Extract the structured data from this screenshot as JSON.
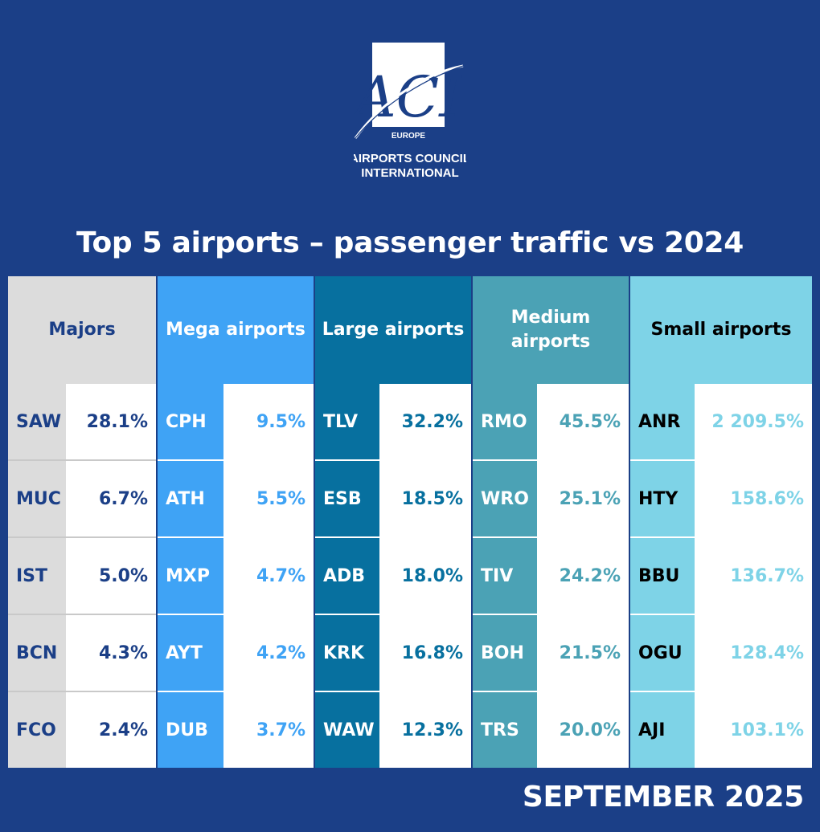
{
  "logo": {
    "mark": "ACI",
    "region": "EUROPE",
    "line1": "AIRPORTS COUNCIL",
    "line2": "INTERNATIONAL"
  },
  "title": "Top 5 airports – passenger traffic vs 2024",
  "footer": "SEPTEMBER 2025",
  "colors": {
    "background": "#1b3f87",
    "majors": "#dcdcdc",
    "mega": "#3fa3f5",
    "large": "#07709f",
    "medium": "#4ba2b5",
    "small": "#7ed3e7"
  },
  "chart_data": {
    "type": "table",
    "groups": [
      {
        "name": "Majors",
        "airports": [
          "SAW",
          "MUC",
          "IST",
          "BCN",
          "FCO"
        ],
        "values": [
          "28.1%",
          "6.7%",
          "5.0%",
          "4.3%",
          "2.4%"
        ]
      },
      {
        "name": "Mega airports",
        "airports": [
          "CPH",
          "ATH",
          "MXP",
          "AYT",
          "DUB"
        ],
        "values": [
          "9.5%",
          "5.5%",
          "4.7%",
          "4.2%",
          "3.7%"
        ]
      },
      {
        "name": "Large airports",
        "airports": [
          "TLV",
          "ESB",
          "ADB",
          "KRK",
          "WAW"
        ],
        "values": [
          "32.2%",
          "18.5%",
          "18.0%",
          "16.8%",
          "12.3%"
        ]
      },
      {
        "name": "Medium\nairports",
        "airports": [
          "RMO",
          "WRO",
          "TIV",
          "BOH",
          "TRS"
        ],
        "values": [
          "45.5%",
          "25.1%",
          "24.2%",
          "21.5%",
          "20.0%"
        ]
      },
      {
        "name": "Small airports",
        "airports": [
          "ANR",
          "HTY",
          "BBU",
          "OGU",
          "AJI"
        ],
        "values": [
          "2 209.5%",
          "158.6%",
          "136.7%",
          "128.4%",
          "103.1%"
        ]
      }
    ]
  }
}
